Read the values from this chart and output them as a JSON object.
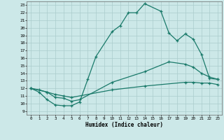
{
  "title": "",
  "xlabel": "Humidex (Indice chaleur)",
  "bg_color": "#cce8e8",
  "grid_color": "#aacccc",
  "line_color": "#1a7a6a",
  "xlim": [
    -0.5,
    23.5
  ],
  "ylim": [
    8.5,
    23.5
  ],
  "xticks": [
    0,
    1,
    2,
    3,
    4,
    5,
    6,
    7,
    8,
    9,
    10,
    11,
    12,
    13,
    14,
    15,
    16,
    17,
    18,
    19,
    20,
    21,
    22,
    23
  ],
  "yticks": [
    9,
    10,
    11,
    12,
    13,
    14,
    15,
    16,
    17,
    18,
    19,
    20,
    21,
    22,
    23
  ],
  "line1_x": [
    0,
    1,
    2,
    3,
    4,
    5,
    6,
    7,
    8,
    10,
    11,
    12,
    13,
    14,
    16,
    17,
    18,
    19,
    20,
    21,
    22,
    23
  ],
  "line1_y": [
    12,
    11.5,
    10.5,
    9.8,
    9.7,
    9.7,
    10.2,
    13.2,
    16.2,
    19.5,
    20.3,
    22.0,
    22.0,
    23.2,
    22.2,
    19.3,
    18.3,
    19.2,
    18.5,
    16.5,
    13.3,
    13.2
  ],
  "line2_x": [
    0,
    2,
    3,
    4,
    5,
    6,
    10,
    14,
    17,
    19,
    20,
    21,
    22,
    23
  ],
  "line2_y": [
    12,
    11.5,
    10.8,
    10.7,
    10.3,
    10.5,
    12.8,
    14.2,
    15.5,
    15.2,
    14.8,
    14.0,
    13.5,
    13.2
  ],
  "line3_x": [
    0,
    1,
    2,
    3,
    4,
    5,
    10,
    14,
    19,
    20,
    21,
    22,
    23
  ],
  "line3_y": [
    12,
    11.8,
    11.5,
    11.2,
    11.0,
    10.8,
    11.8,
    12.3,
    12.8,
    12.8,
    12.7,
    12.7,
    12.5
  ]
}
